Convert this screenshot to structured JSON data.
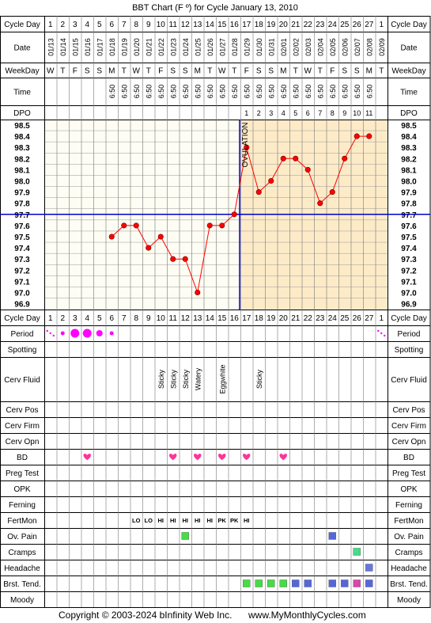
{
  "title": "BBT Chart (F º) for Cycle January 13, 2010",
  "copyright": "Copyright © 2003-2024 bInfinity Web Inc.",
  "site": "www.MyMonthlyCycles.com",
  "ovulation_label": "OVULATION",
  "row_labels": {
    "cycle_day": "Cycle Day",
    "date": "Date",
    "weekday": "WeekDay",
    "time": "Time",
    "dpo": "DPO",
    "period": "Period",
    "spotting": "Spotting",
    "cerv_fluid": "Cerv Fluid",
    "cerv_pos": "Cerv Pos",
    "cerv_firm": "Cerv Firm",
    "cerv_opn": "Cerv Opn",
    "bd": "BD",
    "preg_test": "Preg Test",
    "opk": "OPK",
    "ferning": "Ferning",
    "fertmon": "FertMon",
    "ov_pain": "Ov. Pain",
    "cramps": "Cramps",
    "headache": "Headache",
    "brst_tend": "Brst. Tend.",
    "moody": "Moody"
  },
  "cycle_days": [
    "1",
    "2",
    "3",
    "4",
    "5",
    "6",
    "7",
    "8",
    "9",
    "10",
    "11",
    "12",
    "13",
    "14",
    "15",
    "16",
    "17",
    "18",
    "19",
    "20",
    "21",
    "22",
    "23",
    "24",
    "25",
    "26",
    "27",
    "1"
  ],
  "dates": [
    "01/13",
    "01/14",
    "01/15",
    "01/16",
    "01/17",
    "01/18",
    "01/19",
    "01/20",
    "01/21",
    "01/22",
    "01/23",
    "01/24",
    "01/25",
    "01/26",
    "01/27",
    "01/28",
    "01/29",
    "01/30",
    "01/31",
    "02/01",
    "02/02",
    "02/03",
    "02/04",
    "02/05",
    "02/06",
    "02/07",
    "02/08",
    "02/09"
  ],
  "weekdays": [
    "W",
    "T",
    "F",
    "S",
    "S",
    "M",
    "T",
    "W",
    "T",
    "F",
    "S",
    "S",
    "M",
    "T",
    "W",
    "T",
    "F",
    "S",
    "S",
    "M",
    "T",
    "W",
    "T",
    "F",
    "S",
    "S",
    "M",
    "T"
  ],
  "times": [
    "",
    "",
    "",
    "",
    "",
    "6:50",
    "6:50",
    "6:50",
    "6:50",
    "6:50",
    "6:50",
    "6:50",
    "6:50",
    "6:50",
    "6:50",
    "6:50",
    "6:50",
    "6:50",
    "6:50",
    "6:50",
    "6:50",
    "6:50",
    "6:50",
    "6:50",
    "6:50",
    "6:50",
    "6:50",
    ""
  ],
  "dpo": [
    "",
    "",
    "",
    "",
    "",
    "",
    "",
    "",
    "",
    "",
    "",
    "",
    "",
    "",
    "",
    "",
    "1",
    "2",
    "3",
    "4",
    "5",
    "6",
    "7",
    "8",
    "9",
    "10",
    "11",
    ""
  ],
  "cerv_fluid": [
    "",
    "",
    "",
    "",
    "",
    "",
    "",
    "",
    "",
    "Sticky",
    "Sticky",
    "Sticky",
    "Watery",
    "",
    "Eggwhite",
    "",
    "",
    "Sticky",
    "",
    "",
    "",
    "",
    "",
    "",
    "",
    "",
    "",
    ""
  ],
  "fertmon": [
    "",
    "",
    "",
    "",
    "",
    "",
    "",
    "LO",
    "LO",
    "HI",
    "HI",
    "HI",
    "HI",
    "HI",
    "PK",
    "PK",
    "HI",
    "",
    "",
    "",
    "",
    "",
    "",
    "",
    "",
    "",
    "",
    ""
  ],
  "period": [
    "spotting",
    "light",
    "heavy",
    "heavy",
    "medium",
    "light",
    "",
    "",
    "",
    "",
    "",
    "",
    "",
    "",
    "",
    "",
    "",
    "",
    "",
    "",
    "",
    "",
    "",
    "",
    "",
    "",
    "",
    "spotting"
  ],
  "bd": [
    false,
    false,
    false,
    true,
    false,
    false,
    false,
    false,
    false,
    false,
    true,
    false,
    true,
    false,
    true,
    false,
    true,
    false,
    false,
    true,
    false,
    false,
    false,
    false,
    false,
    false,
    false,
    false
  ],
  "ov_pain": [
    12,
    24
  ],
  "cramps": [
    26
  ],
  "headache": [
    27
  ],
  "brst_tend": [
    17,
    18,
    19,
    20,
    21,
    22,
    24,
    25,
    26,
    27
  ],
  "colors": {
    "grid": "#000000",
    "temp_line": "#ff0000",
    "dot": "#ff0000",
    "luteal_bg": "#fdebc8",
    "follicular_bg": "#fdfdf3",
    "coverline": "#0000cc",
    "period": "#ff00ff",
    "heart": "#ff3399",
    "fertmon": "#008000",
    "ov_pain": "#44dd44",
    "cramps": "#44dd88",
    "headache": "#6677dd",
    "brst_green": "#44dd44",
    "brst_blue": "#5566dd",
    "brst_pink": "#dd44aa"
  },
  "brst_colors": {
    "17": "green",
    "18": "green",
    "19": "green",
    "20": "green",
    "21": "blue",
    "22": "blue",
    "24": "blue",
    "25": "blue",
    "26": "pink",
    "27": "blue"
  },
  "chart_data": {
    "type": "line",
    "title": "BBT Chart (F º) for Cycle January 13, 2010",
    "xlabel": "Cycle Day",
    "ylabel": "",
    "x": [
      1,
      2,
      3,
      4,
      5,
      6,
      7,
      8,
      9,
      10,
      11,
      12,
      13,
      14,
      15,
      16,
      17,
      18,
      19,
      20,
      21,
      22,
      23,
      24,
      25,
      26,
      27,
      28
    ],
    "y_ticks": [
      "96.9",
      "97.0",
      "97.1",
      "97.2",
      "97.3",
      "97.4",
      "97.5",
      "97.6",
      "97.7",
      "97.8",
      "97.9",
      "98.0",
      "98.1",
      "98.2",
      "98.3",
      "98.4",
      "98.5"
    ],
    "ylim": [
      96.9,
      98.5
    ],
    "series": [
      {
        "values": [
          null,
          null,
          null,
          null,
          null,
          97.5,
          97.6,
          97.6,
          97.4,
          97.5,
          97.3,
          97.3,
          97.0,
          97.6,
          97.6,
          97.7,
          98.3,
          97.9,
          98.0,
          98.2,
          98.2,
          98.1,
          97.8,
          97.9,
          98.2,
          98.4,
          98.4,
          null
        ]
      }
    ],
    "coverline": 97.7,
    "ovulation_day": 16,
    "grid": true
  }
}
